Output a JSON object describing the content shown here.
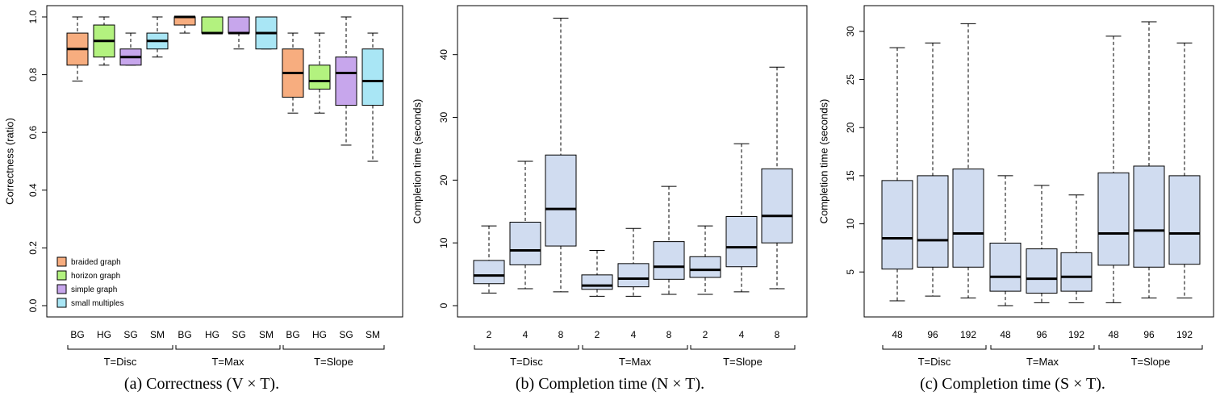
{
  "chart_data": [
    {
      "type": "boxplot",
      "caption": "(a)  Correctness (V × T).",
      "ylabel": "Correctness (ratio)",
      "ylim": [
        0.0,
        1.0
      ],
      "yticks": [
        "0.0",
        "0.2",
        "0.4",
        "0.6",
        "0.8",
        "1.0"
      ],
      "groups": [
        "T=Disc",
        "T=Max",
        "T=Slope"
      ],
      "categories": [
        "BG",
        "HG",
        "SG",
        "SM"
      ],
      "legend": {
        "position": "bottom-left",
        "entries": [
          {
            "label": "braided graph",
            "color": "#f7ad7f"
          },
          {
            "label": "horizon graph",
            "color": "#b3f27f"
          },
          {
            "label": "simple graph",
            "color": "#c7a6ec"
          },
          {
            "label": "small multiples",
            "color": "#a9e6f5"
          }
        ]
      },
      "boxes": [
        {
          "group": "T=Disc",
          "category": "BG",
          "color": "#f7ad7f",
          "min": 0.778,
          "q1": 0.833,
          "median": 0.889,
          "q3": 0.944,
          "max": 1.0
        },
        {
          "group": "T=Disc",
          "category": "HG",
          "color": "#b3f27f",
          "min": 0.833,
          "q1": 0.861,
          "median": 0.917,
          "q3": 0.972,
          "max": 1.0
        },
        {
          "group": "T=Disc",
          "category": "SG",
          "color": "#c7a6ec",
          "min": 0.833,
          "q1": 0.833,
          "median": 0.861,
          "q3": 0.889,
          "max": 0.944
        },
        {
          "group": "T=Disc",
          "category": "SM",
          "color": "#a9e6f5",
          "min": 0.861,
          "q1": 0.889,
          "median": 0.917,
          "q3": 0.944,
          "max": 1.0
        },
        {
          "group": "T=Max",
          "category": "BG",
          "color": "#f7ad7f",
          "min": 0.944,
          "q1": 0.972,
          "median": 1.0,
          "q3": 1.0,
          "max": 1.0
        },
        {
          "group": "T=Max",
          "category": "HG",
          "color": "#b3f27f",
          "min": 0.944,
          "q1": 0.944,
          "median": 0.944,
          "q3": 1.0,
          "max": 1.0
        },
        {
          "group": "T=Max",
          "category": "SG",
          "color": "#c7a6ec",
          "min": 0.889,
          "q1": 0.944,
          "median": 0.944,
          "q3": 1.0,
          "max": 1.0
        },
        {
          "group": "T=Max",
          "category": "SM",
          "color": "#a9e6f5",
          "min": 0.889,
          "q1": 0.889,
          "median": 0.944,
          "q3": 1.0,
          "max": 1.0
        },
        {
          "group": "T=Slope",
          "category": "BG",
          "color": "#f7ad7f",
          "min": 0.667,
          "q1": 0.722,
          "median": 0.806,
          "q3": 0.889,
          "max": 0.944
        },
        {
          "group": "T=Slope",
          "category": "HG",
          "color": "#b3f27f",
          "min": 0.667,
          "q1": 0.75,
          "median": 0.778,
          "q3": 0.833,
          "max": 0.944
        },
        {
          "group": "T=Slope",
          "category": "SG",
          "color": "#c7a6ec",
          "min": 0.556,
          "q1": 0.694,
          "median": 0.806,
          "q3": 0.861,
          "max": 1.0
        },
        {
          "group": "T=Slope",
          "category": "SM",
          "color": "#a9e6f5",
          "min": 0.5,
          "q1": 0.694,
          "median": 0.778,
          "q3": 0.889,
          "max": 0.944
        }
      ]
    },
    {
      "type": "boxplot",
      "caption": "(b)  Completion time (N × T).",
      "ylabel": "Completion time (seconds)",
      "ylim": [
        0,
        46
      ],
      "yticks": [
        "0",
        "10",
        "20",
        "30",
        "40"
      ],
      "groups": [
        "T=Disc",
        "T=Max",
        "T=Slope"
      ],
      "categories": [
        "2",
        "4",
        "8"
      ],
      "box_color": "#d0dcf0",
      "boxes": [
        {
          "group": "T=Disc",
          "category": "2",
          "min": 2.0,
          "q1": 3.5,
          "median": 4.8,
          "q3": 7.2,
          "max": 12.7
        },
        {
          "group": "T=Disc",
          "category": "4",
          "min": 2.7,
          "q1": 6.5,
          "median": 8.8,
          "q3": 13.3,
          "max": 23.0
        },
        {
          "group": "T=Disc",
          "category": "8",
          "min": 2.2,
          "q1": 9.5,
          "median": 15.4,
          "q3": 24.0,
          "max": 45.8
        },
        {
          "group": "T=Max",
          "category": "2",
          "min": 1.5,
          "q1": 2.6,
          "median": 3.2,
          "q3": 4.9,
          "max": 8.8
        },
        {
          "group": "T=Max",
          "category": "4",
          "min": 1.5,
          "q1": 3.0,
          "median": 4.3,
          "q3": 6.7,
          "max": 12.3
        },
        {
          "group": "T=Max",
          "category": "8",
          "min": 1.8,
          "q1": 4.2,
          "median": 6.2,
          "q3": 10.2,
          "max": 19.0
        },
        {
          "group": "T=Slope",
          "category": "2",
          "min": 1.8,
          "q1": 4.5,
          "median": 5.7,
          "q3": 7.8,
          "max": 12.7
        },
        {
          "group": "T=Slope",
          "category": "4",
          "min": 2.2,
          "q1": 6.2,
          "median": 9.3,
          "q3": 14.2,
          "max": 25.8
        },
        {
          "group": "T=Slope",
          "category": "8",
          "min": 2.7,
          "q1": 10.0,
          "median": 14.3,
          "q3": 21.8,
          "max": 38.0
        }
      ]
    },
    {
      "type": "boxplot",
      "caption": "(c)  Completion time (S × T).",
      "ylabel": "Completion time (seconds)",
      "ylim": [
        1.5,
        31.5
      ],
      "yticks": [
        "5",
        "10",
        "15",
        "20",
        "25",
        "30"
      ],
      "groups": [
        "T=Disc",
        "T=Max",
        "T=Slope"
      ],
      "categories": [
        "48",
        "96",
        "192"
      ],
      "box_color": "#d0dcf0",
      "boxes": [
        {
          "group": "T=Disc",
          "category": "48",
          "min": 2.0,
          "q1": 5.3,
          "median": 8.5,
          "q3": 14.5,
          "max": 28.3
        },
        {
          "group": "T=Disc",
          "category": "96",
          "min": 2.5,
          "q1": 5.5,
          "median": 8.3,
          "q3": 15.0,
          "max": 28.8
        },
        {
          "group": "T=Disc",
          "category": "192",
          "min": 2.3,
          "q1": 5.5,
          "median": 9.0,
          "q3": 15.7,
          "max": 30.8
        },
        {
          "group": "T=Max",
          "category": "48",
          "min": 1.5,
          "q1": 3.0,
          "median": 4.5,
          "q3": 8.0,
          "max": 15.0
        },
        {
          "group": "T=Max",
          "category": "96",
          "min": 1.8,
          "q1": 2.8,
          "median": 4.3,
          "q3": 7.4,
          "max": 14.0
        },
        {
          "group": "T=Max",
          "category": "192",
          "min": 1.8,
          "q1": 3.0,
          "median": 4.5,
          "q3": 7.0,
          "max": 13.0
        },
        {
          "group": "T=Slope",
          "category": "48",
          "min": 1.8,
          "q1": 5.7,
          "median": 9.0,
          "q3": 15.3,
          "max": 29.5
        },
        {
          "group": "T=Slope",
          "category": "96",
          "min": 2.3,
          "q1": 5.5,
          "median": 9.3,
          "q3": 16.0,
          "max": 31.0
        },
        {
          "group": "T=Slope",
          "category": "192",
          "min": 2.3,
          "q1": 5.8,
          "median": 9.0,
          "q3": 15.0,
          "max": 28.8
        }
      ]
    }
  ]
}
